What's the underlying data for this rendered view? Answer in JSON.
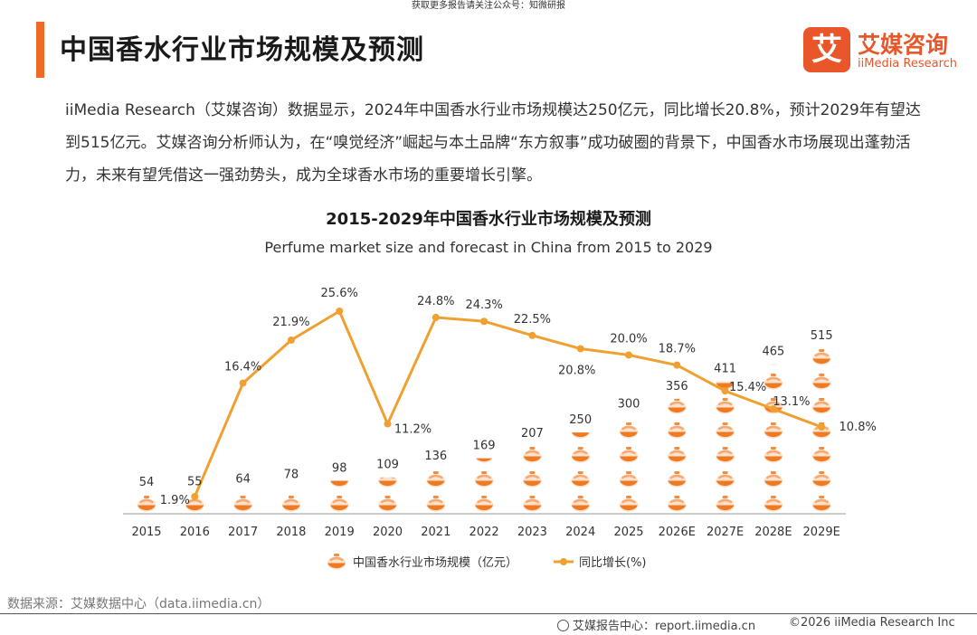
{
  "top_notice": "获取更多报告请关注公众号：知微研报",
  "page_title": "中国香水行业市场规模及预测",
  "logo": {
    "cn": "艾媒咨询",
    "en": "iiMedia Research",
    "mark": "艾"
  },
  "intro": "iiMedia Research（艾媒咨询）数据显示，2024年中国香水行业市场规模达250亿元，同比增长20.8%，预计2029年有望达到515亿元。艾媒咨询分析师认为，在“嗅觉经济”崛起与本土品牌“东方叙事”成功破圈的背景下，中国香水市场展现出蓬勃活力，未来有望凭借这一强劲势头，成为全球香水市场的重要增长引擎。",
  "chart_data": {
    "type": "bar",
    "title": "2015-2029年中国香水行业市场规模及预测",
    "subtitle": "Perfume market size and forecast in China from 2015 to 2029",
    "categories": [
      "2015",
      "2016",
      "2017",
      "2018",
      "2019",
      "2020",
      "2021",
      "2022",
      "2023",
      "2024",
      "2025",
      "2026E",
      "2027E",
      "2028E",
      "2029E"
    ],
    "series": [
      {
        "name": "中国香水行业市场规模（亿元）",
        "type": "pictorial-bar",
        "color": "#f07a22",
        "values": [
          54,
          55,
          64,
          78,
          98,
          109,
          136,
          169,
          207,
          250,
          300,
          356,
          411,
          465,
          515
        ]
      },
      {
        "name": "同比增长(%)",
        "type": "line",
        "color": "#f0a030",
        "values": [
          null,
          1.9,
          16.4,
          21.9,
          25.6,
          11.2,
          24.8,
          24.3,
          22.5,
          20.8,
          20.0,
          18.7,
          15.4,
          13.1,
          10.8
        ],
        "labels": [
          "",
          "1.9%",
          "16.4%",
          "21.9%",
          "25.6%",
          "11.2%",
          "24.8%",
          "24.3%",
          "22.5%",
          "20.8%",
          "20.0%",
          "18.7%",
          "15.4%",
          "13.1%",
          "10.8%"
        ]
      }
    ],
    "legend_position": "bottom-center",
    "grid": false
  },
  "source": "数据来源：艾媒数据中心（data.iimedia.cn）",
  "footer": {
    "center_label": "艾媒报告中心：report.iimedia.cn",
    "copyright": "©2026  iiMedia Research  Inc"
  }
}
